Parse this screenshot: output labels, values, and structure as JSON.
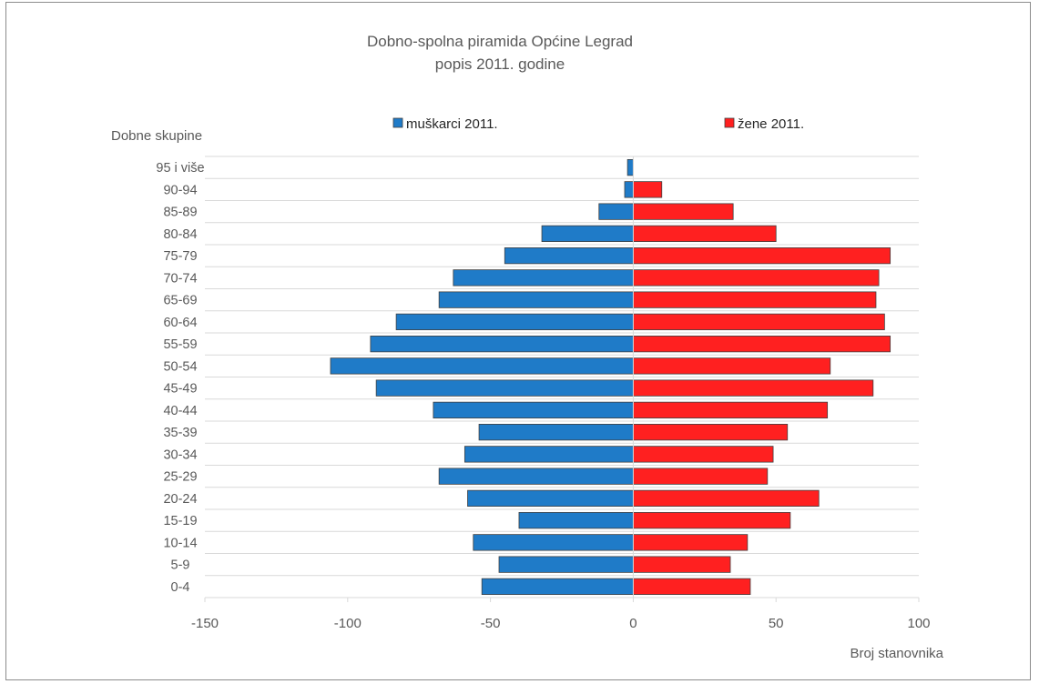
{
  "chart_data": {
    "type": "bar",
    "orientation": "horizontal",
    "layout": "population-pyramid",
    "title": "Dobno-spolna piramida Općine Legrad",
    "subtitle": "popis 2011. godine",
    "ylabel": "Dobne skupine",
    "xlabel": "Broj stanovnika",
    "xlim": [
      -150,
      100
    ],
    "xticks": [
      "-150",
      "-100",
      "-50",
      "0",
      "50",
      "100"
    ],
    "xtick_values": [
      -150,
      -100,
      -50,
      0,
      50,
      100
    ],
    "grid": true,
    "legend_position": "top",
    "categories": [
      "95 i više",
      "90-94",
      "85-89",
      "80-84",
      "75-79",
      "70-74",
      "65-69",
      "60-64",
      "55-59",
      "50-54",
      "45-49",
      "40-44",
      "35-39",
      "30-34",
      "25-29",
      "20-24",
      "15-19",
      "10-14",
      "5-9",
      "0-4"
    ],
    "series": [
      {
        "name": "muškarci 2011.",
        "color": "#1f7bc8",
        "values": [
          -2,
          -3,
          -12,
          -32,
          -45,
          -63,
          -68,
          -83,
          -92,
          -106,
          -90,
          -70,
          -54,
          -59,
          -68,
          -58,
          -40,
          -56,
          -47,
          -53
        ]
      },
      {
        "name": "žene 2011.",
        "color": "#ff2020",
        "values": [
          0,
          10,
          35,
          50,
          90,
          86,
          85,
          88,
          90,
          69,
          84,
          68,
          54,
          49,
          47,
          65,
          55,
          40,
          34,
          41
        ]
      }
    ]
  }
}
